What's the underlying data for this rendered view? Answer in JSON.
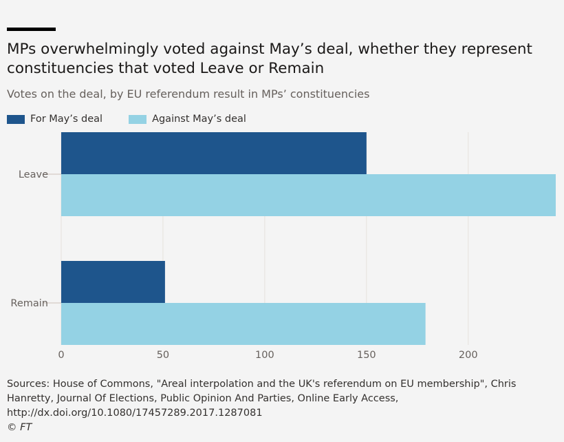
{
  "chart_data": {
    "type": "bar",
    "orientation": "horizontal",
    "title": "MPs overwhelmingly voted against May’s deal, whether they represent constituencies that voted Leave or Remain",
    "subtitle": "Votes on the deal, by EU referendum result in MPs’ constituencies",
    "categories": [
      "Leave",
      "Remain"
    ],
    "series": [
      {
        "name": "For May’s deal",
        "values": [
          150,
          51
        ],
        "color": "#1e558c"
      },
      {
        "name": "Against May’s deal",
        "values": [
          243,
          179
        ],
        "color": "#94d2e4"
      }
    ],
    "xlim": [
      0,
      243
    ],
    "xticks": [
      0,
      50,
      100,
      150,
      200
    ],
    "xtick_labels": [
      "0",
      "50",
      "100",
      "150",
      "200"
    ],
    "grid": true,
    "legend": "top-left",
    "xlabel": "",
    "ylabel": ""
  },
  "footer": {
    "source": "Sources: House of Commons, \"Areal interpolation and the UK's referendum on EU membership\", Chris Hanretty, Journal Of Elections, Public Opinion And Parties, Online Early Access, http://dx.doi.org/10.1080/17457289.2017.1287081",
    "copyright": "© FT"
  }
}
